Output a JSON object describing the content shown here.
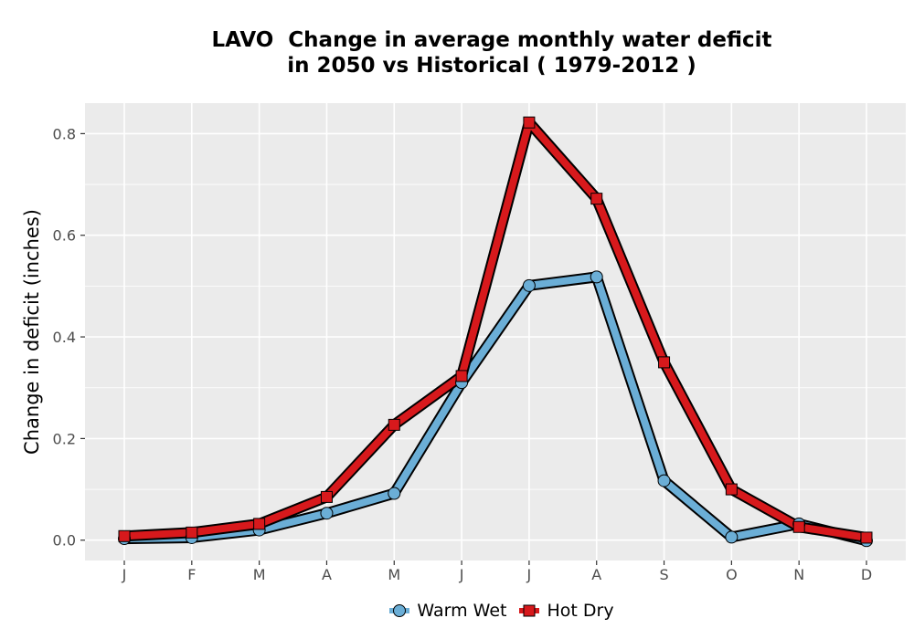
{
  "chart_data": {
    "type": "line",
    "title_lines": [
      "LAVO  Change in average monthly water deficit",
      "in 2050 vs Historical ( 1979-2012 )"
    ],
    "xlabel": "",
    "ylabel": "Change in deficit (inches)",
    "categories": [
      "J",
      "F",
      "M",
      "A",
      "M",
      "J",
      "J",
      "A",
      "S",
      "O",
      "N",
      "D"
    ],
    "ylim": [
      -0.04,
      0.86
    ],
    "yticks": [
      0.0,
      0.2,
      0.4,
      0.6,
      0.8
    ],
    "ytick_labels": [
      "0.0",
      "0.2",
      "0.4",
      "0.6",
      "0.8"
    ],
    "grid": true,
    "legend_position": "bottom",
    "series": [
      {
        "name": "Warm Wet",
        "color": "#6baed6",
        "marker": "circle",
        "values": [
          0.003,
          0.005,
          0.02,
          0.053,
          0.092,
          0.31,
          0.501,
          0.518,
          0.117,
          0.006,
          0.032,
          -0.001
        ]
      },
      {
        "name": "Hot Dry",
        "color": "#d7191c",
        "marker": "square",
        "values": [
          0.008,
          0.015,
          0.032,
          0.085,
          0.227,
          0.323,
          0.822,
          0.672,
          0.35,
          0.1,
          0.026,
          0.005
        ]
      }
    ]
  }
}
